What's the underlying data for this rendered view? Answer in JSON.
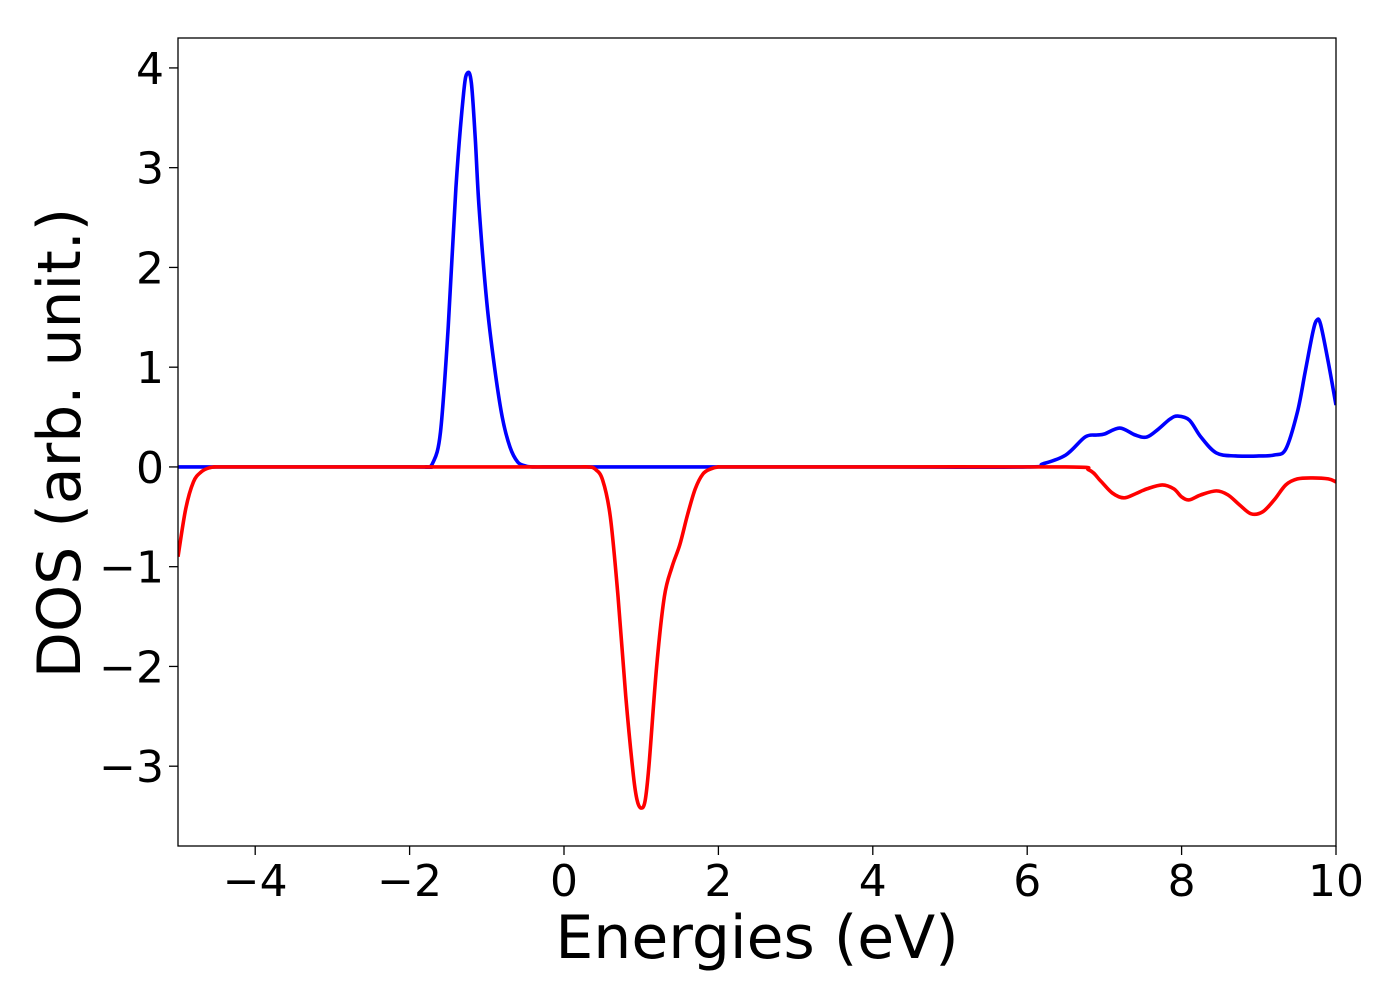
{
  "chart_data": {
    "type": "line",
    "title": "",
    "xlabel": "Energies (eV)",
    "ylabel": "DOS (arb. unit.)",
    "xlim": [
      -5,
      10
    ],
    "ylim": [
      -3.8,
      4.3
    ],
    "x_ticks": [
      -4,
      -2,
      0,
      2,
      4,
      6,
      8,
      10
    ],
    "x_tick_labels": [
      "−4",
      "−2",
      "0",
      "2",
      "4",
      "6",
      "8",
      "10"
    ],
    "y_ticks": [
      -3,
      -2,
      -1,
      0,
      1,
      2,
      3,
      4
    ],
    "y_tick_labels": [
      "−3",
      "−2",
      "−1",
      "0",
      "1",
      "2",
      "3",
      "4"
    ],
    "grid": false,
    "legend": false,
    "series": [
      {
        "color": "#0000ff",
        "x": [
          -5,
          -2.0,
          -1.8,
          -1.7,
          -1.6,
          -1.5,
          -1.4,
          -1.3,
          -1.25,
          -1.2,
          -1.15,
          -1.1,
          -1.0,
          -0.9,
          -0.8,
          -0.7,
          -0.6,
          -0.5,
          -0.4,
          -0.2,
          0,
          2,
          4,
          6.0,
          6.2,
          6.5,
          6.75,
          6.9,
          7.0,
          7.2,
          7.4,
          7.55,
          7.7,
          7.85,
          7.95,
          8.1,
          8.25,
          8.45,
          8.7,
          9.0,
          9.2,
          9.35,
          9.5,
          9.6,
          9.7,
          9.75,
          9.8,
          9.9,
          10.0
        ],
        "y": [
          0,
          0,
          0.0,
          0.04,
          0.35,
          1.4,
          2.8,
          3.75,
          3.95,
          3.85,
          3.3,
          2.6,
          1.65,
          1.0,
          0.5,
          0.2,
          0.05,
          0.01,
          0.0,
          0,
          0,
          0,
          0,
          0.0,
          0.03,
          0.12,
          0.3,
          0.32,
          0.33,
          0.39,
          0.32,
          0.3,
          0.38,
          0.48,
          0.51,
          0.47,
          0.3,
          0.14,
          0.11,
          0.11,
          0.12,
          0.18,
          0.55,
          0.95,
          1.35,
          1.47,
          1.43,
          1.05,
          0.62
        ]
      },
      {
        "color": "#ff0000",
        "x": [
          -5.0,
          -4.9,
          -4.8,
          -4.7,
          -4.6,
          -4.5,
          -4.3,
          -2,
          0,
          0.3,
          0.4,
          0.5,
          0.6,
          0.7,
          0.8,
          0.9,
          0.95,
          1.0,
          1.05,
          1.1,
          1.2,
          1.3,
          1.4,
          1.5,
          1.6,
          1.7,
          1.8,
          1.9,
          2.0,
          2.2,
          4,
          6.5,
          6.8,
          6.95,
          7.1,
          7.25,
          7.4,
          7.55,
          7.75,
          7.9,
          8.0,
          8.1,
          8.25,
          8.45,
          8.6,
          8.75,
          8.9,
          9.05,
          9.2,
          9.35,
          9.5,
          9.7,
          9.9,
          10.0
        ],
        "y": [
          -0.9,
          -0.42,
          -0.15,
          -0.05,
          -0.01,
          0,
          0,
          0,
          0,
          0,
          -0.02,
          -0.13,
          -0.5,
          -1.3,
          -2.3,
          -3.1,
          -3.35,
          -3.42,
          -3.35,
          -3.0,
          -2.0,
          -1.3,
          -1.0,
          -0.78,
          -0.48,
          -0.22,
          -0.07,
          -0.02,
          0,
          0,
          0,
          0,
          -0.03,
          -0.14,
          -0.26,
          -0.31,
          -0.27,
          -0.22,
          -0.18,
          -0.22,
          -0.3,
          -0.33,
          -0.28,
          -0.24,
          -0.28,
          -0.38,
          -0.47,
          -0.45,
          -0.33,
          -0.18,
          -0.12,
          -0.11,
          -0.12,
          -0.15
        ]
      }
    ]
  }
}
